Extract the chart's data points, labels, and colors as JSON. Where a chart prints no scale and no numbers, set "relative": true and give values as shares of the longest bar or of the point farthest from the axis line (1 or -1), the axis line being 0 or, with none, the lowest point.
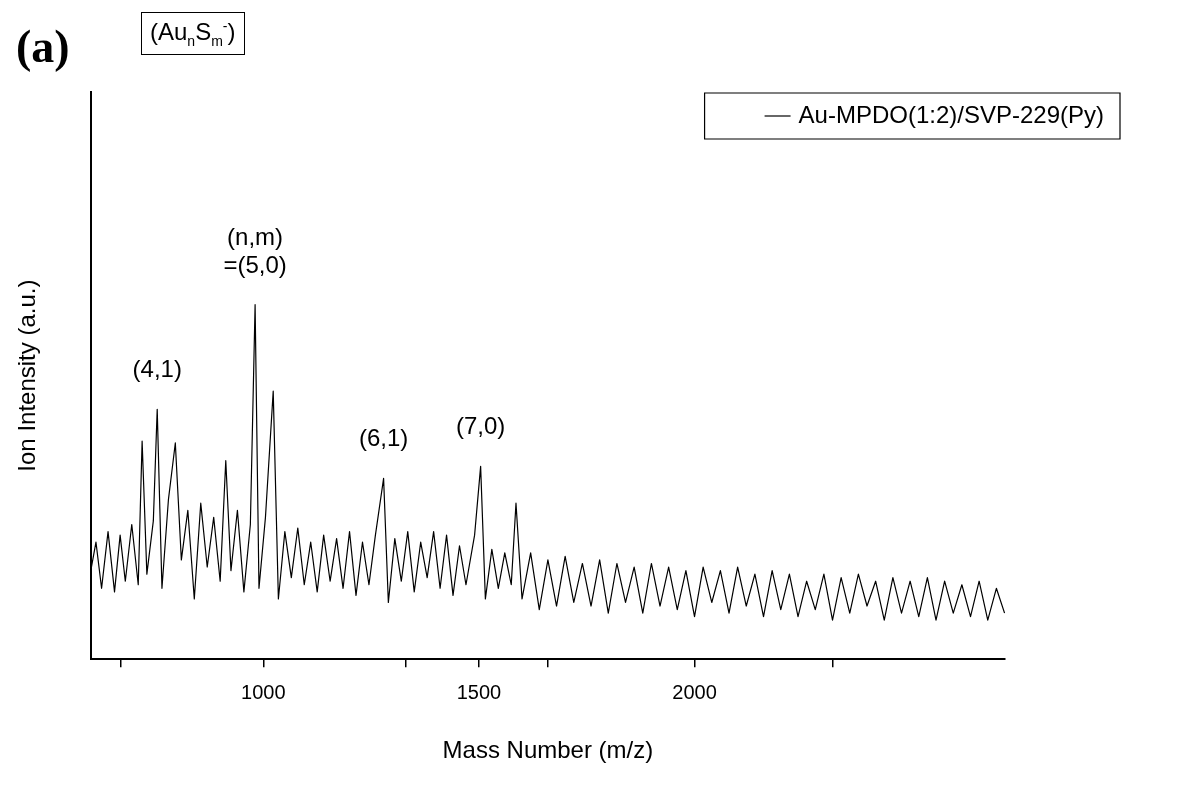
{
  "chart_data": {
    "type": "line",
    "title": "(a)",
    "subtitle": "(Au$_{n}$S$_{m}$$^{-}$)",
    "xlabel": "Mass Number (m/z)",
    "ylabel": "Ion Intensity (a.u.)",
    "relative": true,
    "legend": "top right",
    "grid": false,
    "marker": "none",
    "xlim": [
      600,
      2720
    ],
    "xticks": [
      {
        "value": 670,
        "label": null
      },
      1000,
      {
        "value": 1330,
        "label": null
      },
      1500,
      {
        "value": 1660,
        "label": null
      },
      2000,
      {
        "value": 2320,
        "label": null
      }
    ],
    "series": [
      {
        "name": "Au-MPDO(1:2)/SVP-229(Py)",
        "color": "#000000",
        "x": [
          600,
          612,
          625,
          640,
          655,
          668,
          680,
          695,
          710,
          719,
          730,
          745,
          754,
          765,
          780,
          796,
          810,
          825,
          840,
          855,
          870,
          885,
          900,
          913,
          925,
          940,
          955,
          970,
          981,
          990,
          1005,
          1023,
          1035,
          1050,
          1065,
          1080,
          1095,
          1110,
          1125,
          1140,
          1155,
          1170,
          1185,
          1200,
          1215,
          1230,
          1245,
          1260,
          1279,
          1290,
          1305,
          1320,
          1335,
          1350,
          1365,
          1380,
          1395,
          1410,
          1425,
          1440,
          1455,
          1470,
          1490,
          1504,
          1515,
          1530,
          1545,
          1560,
          1575,
          1586,
          1600,
          1620,
          1640,
          1660,
          1680,
          1700,
          1720,
          1740,
          1760,
          1780,
          1800,
          1820,
          1840,
          1860,
          1880,
          1900,
          1920,
          1940,
          1960,
          1980,
          2000,
          2020,
          2040,
          2060,
          2080,
          2100,
          2120,
          2140,
          2160,
          2180,
          2200,
          2220,
          2240,
          2260,
          2280,
          2300,
          2320,
          2340,
          2360,
          2380,
          2400,
          2420,
          2440,
          2460,
          2480,
          2500,
          2520,
          2540,
          2560,
          2580,
          2600,
          2620,
          2640,
          2660,
          2680,
          2700,
          2719
        ],
        "values": [
          0.25,
          0.33,
          0.2,
          0.36,
          0.19,
          0.35,
          0.22,
          0.38,
          0.21,
          0.615,
          0.24,
          0.39,
          0.705,
          0.2,
          0.45,
          0.61,
          0.28,
          0.42,
          0.17,
          0.44,
          0.26,
          0.4,
          0.22,
          0.56,
          0.25,
          0.42,
          0.19,
          0.38,
          1.0,
          0.2,
          0.4,
          0.756,
          0.17,
          0.36,
          0.23,
          0.37,
          0.21,
          0.33,
          0.19,
          0.35,
          0.22,
          0.34,
          0.2,
          0.36,
          0.18,
          0.33,
          0.21,
          0.35,
          0.51,
          0.16,
          0.34,
          0.22,
          0.36,
          0.19,
          0.33,
          0.23,
          0.36,
          0.2,
          0.35,
          0.18,
          0.32,
          0.21,
          0.35,
          0.544,
          0.17,
          0.31,
          0.2,
          0.3,
          0.21,
          0.44,
          0.17,
          0.3,
          0.14,
          0.28,
          0.15,
          0.29,
          0.16,
          0.27,
          0.15,
          0.28,
          0.13,
          0.27,
          0.16,
          0.26,
          0.13,
          0.27,
          0.15,
          0.26,
          0.14,
          0.25,
          0.12,
          0.26,
          0.16,
          0.25,
          0.13,
          0.26,
          0.15,
          0.24,
          0.12,
          0.25,
          0.14,
          0.24,
          0.12,
          0.22,
          0.14,
          0.24,
          0.11,
          0.23,
          0.13,
          0.24,
          0.15,
          0.22,
          0.11,
          0.23,
          0.13,
          0.22,
          0.12,
          0.23,
          0.11,
          0.22,
          0.13,
          0.21,
          0.12,
          0.22,
          0.11,
          0.2,
          0.13
        ]
      }
    ],
    "annotations": [
      {
        "text": "(4,1)",
        "x": 754,
        "y": 0.705
      },
      {
        "text": "(n,m)\n=(5,0)",
        "x": 981,
        "y": 1.0
      },
      {
        "text": "(6,1)",
        "x": 1279,
        "y": 0.51
      },
      {
        "text": "(7,0)",
        "x": 1504,
        "y": 0.544
      }
    ]
  }
}
